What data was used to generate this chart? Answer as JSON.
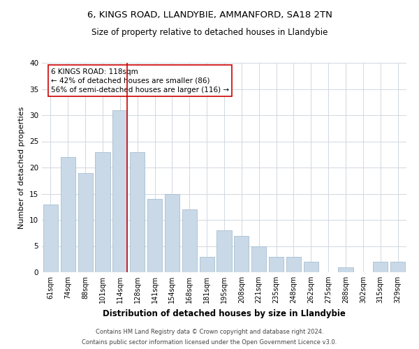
{
  "title": "6, KINGS ROAD, LLANDYBIE, AMMANFORD, SA18 2TN",
  "subtitle": "Size of property relative to detached houses in Llandybie",
  "xlabel": "Distribution of detached houses by size in Llandybie",
  "ylabel": "Number of detached properties",
  "bar_labels": [
    "61sqm",
    "74sqm",
    "88sqm",
    "101sqm",
    "114sqm",
    "128sqm",
    "141sqm",
    "154sqm",
    "168sqm",
    "181sqm",
    "195sqm",
    "208sqm",
    "221sqm",
    "235sqm",
    "248sqm",
    "262sqm",
    "275sqm",
    "288sqm",
    "302sqm",
    "315sqm",
    "329sqm"
  ],
  "bar_values": [
    13,
    22,
    19,
    23,
    31,
    23,
    14,
    15,
    12,
    3,
    8,
    7,
    5,
    3,
    3,
    2,
    0,
    1,
    0,
    2,
    2
  ],
  "bar_color": "#c9d9e8",
  "bar_edge_color": "#a8bece",
  "highlight_index": 4,
  "highlight_line_color": "#cc0000",
  "ylim": [
    0,
    40
  ],
  "yticks": [
    0,
    5,
    10,
    15,
    20,
    25,
    30,
    35,
    40
  ],
  "annotation_line1": "6 KINGS ROAD: 118sqm",
  "annotation_line2": "← 42% of detached houses are smaller (86)",
  "annotation_line3": "56% of semi-detached houses are larger (116) →",
  "annotation_box_color": "#ffffff",
  "annotation_box_edge_color": "#cc0000",
  "footer_line1": "Contains HM Land Registry data © Crown copyright and database right 2024.",
  "footer_line2": "Contains public sector information licensed under the Open Government Licence v3.0.",
  "bg_color": "#ffffff",
  "grid_color": "#d0d8e0",
  "title_fontsize": 9.5,
  "subtitle_fontsize": 8.5,
  "axis_label_fontsize": 8,
  "tick_fontsize": 7,
  "annotation_fontsize": 7.5,
  "footer_fontsize": 6
}
